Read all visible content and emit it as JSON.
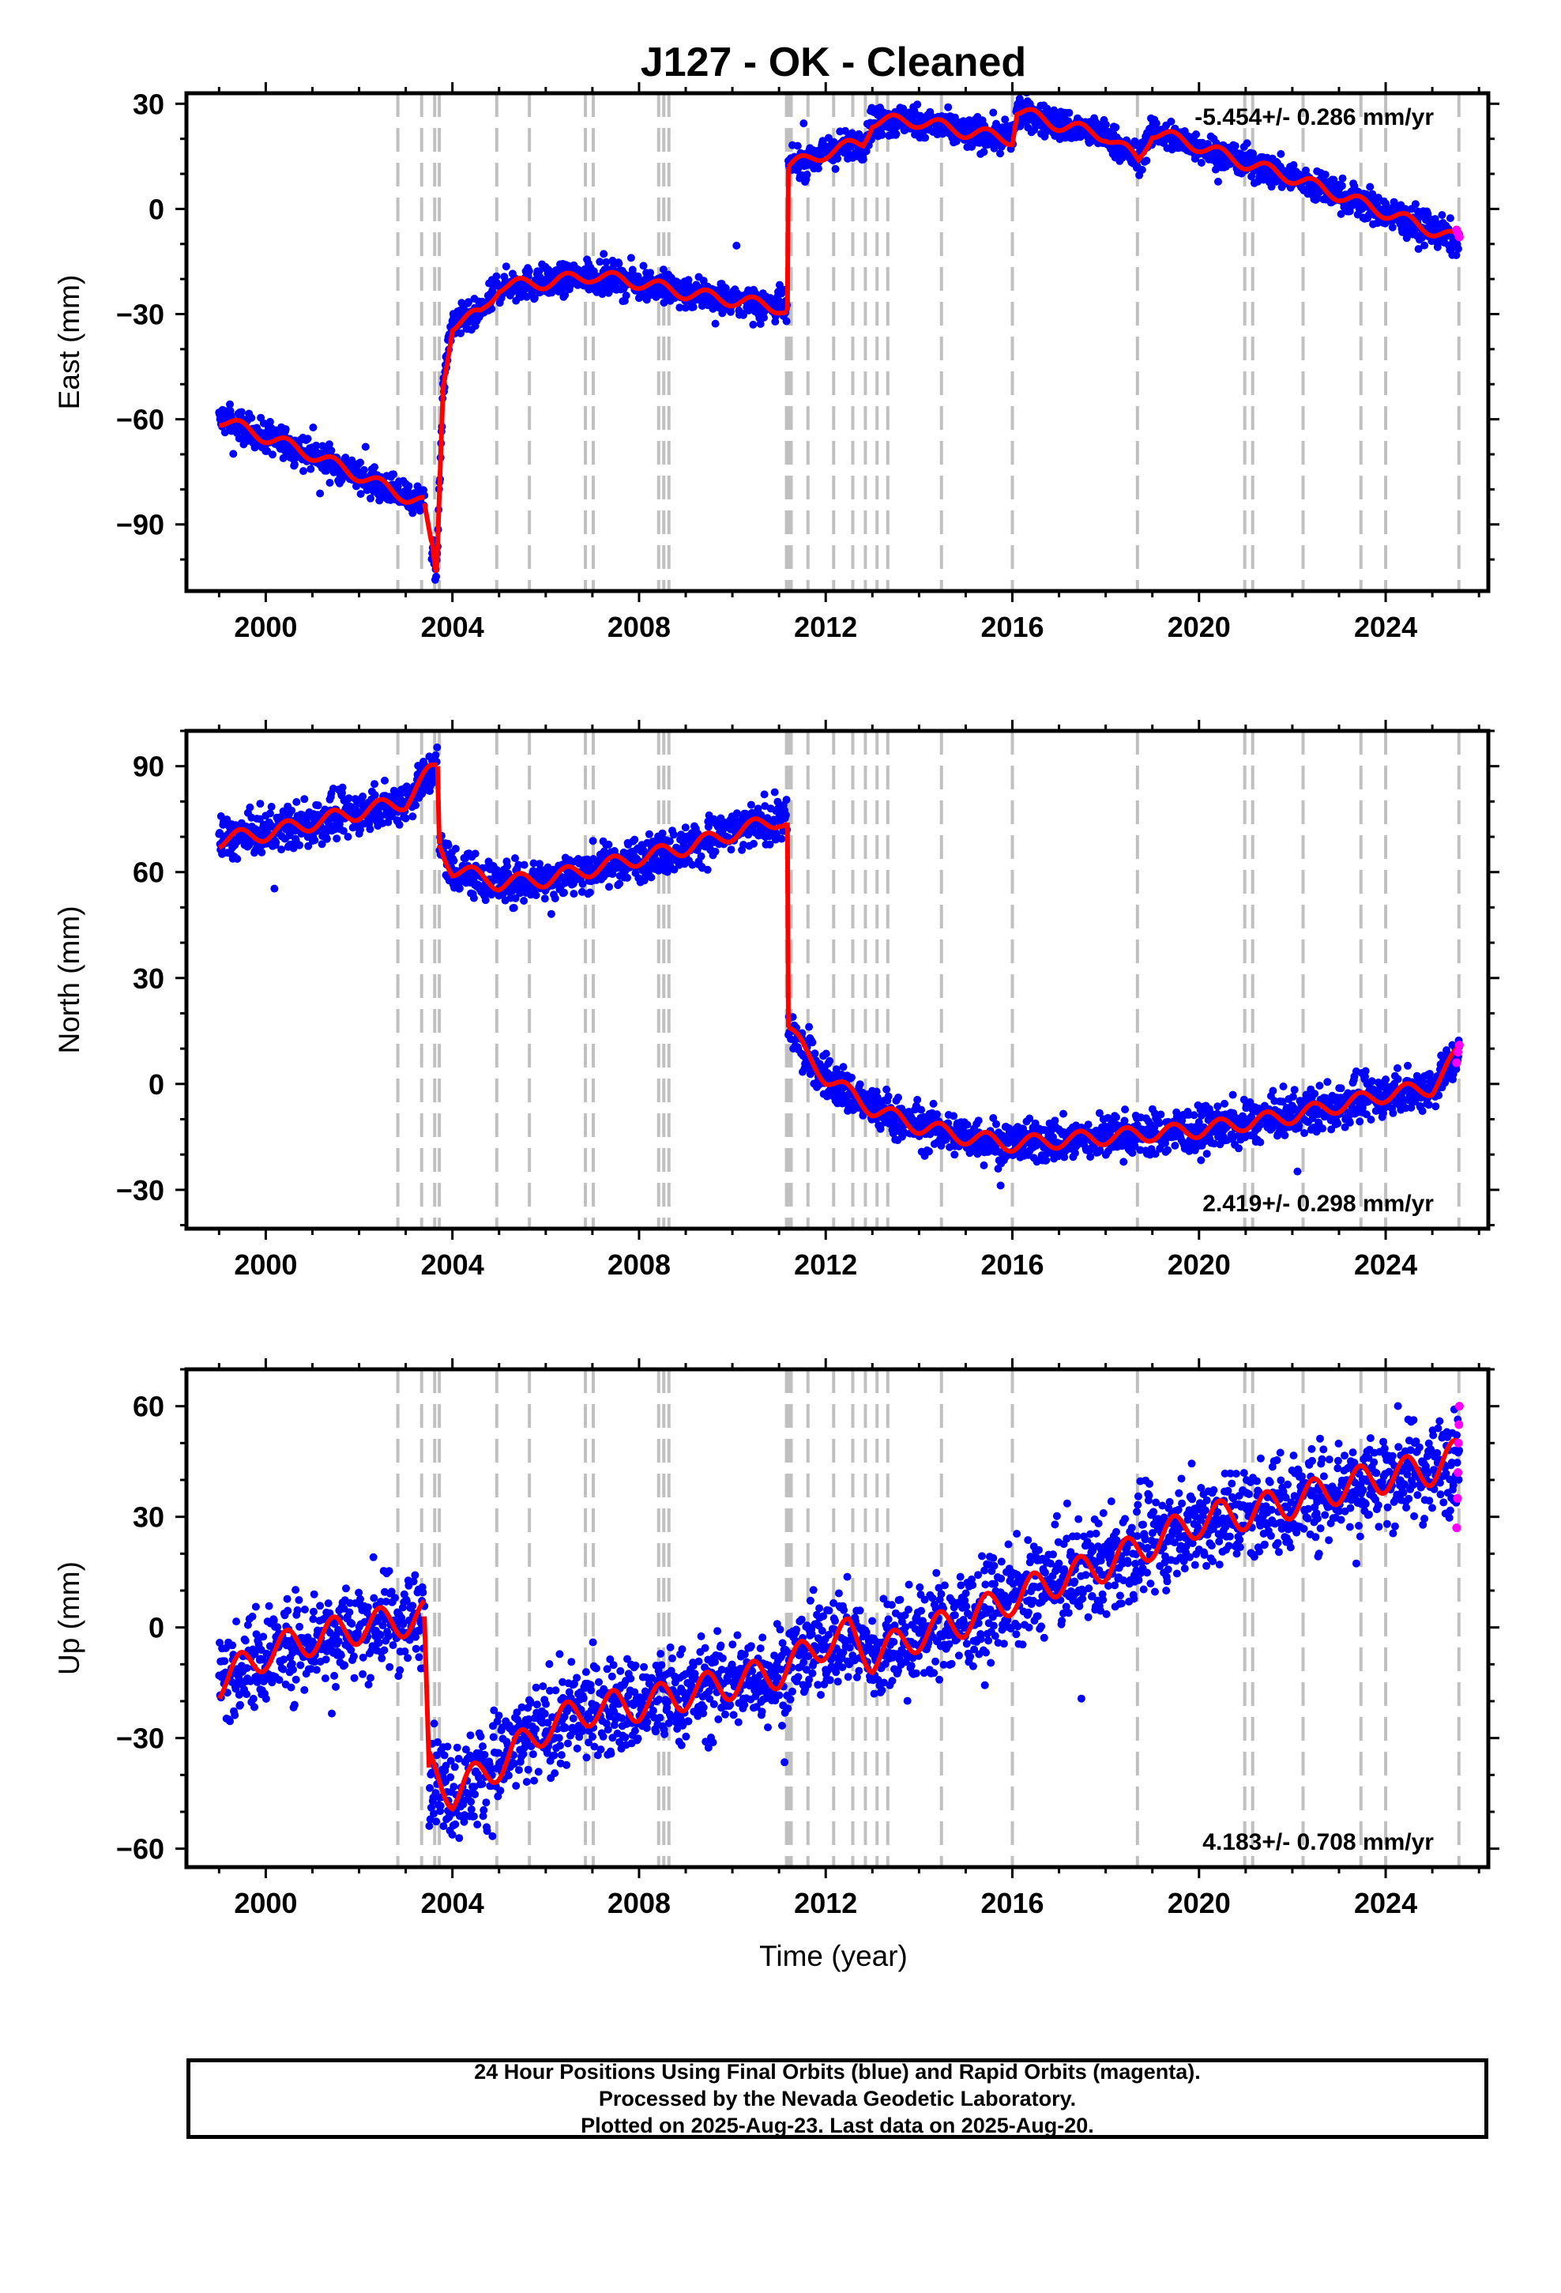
{
  "title": "J127  - OK - Cleaned",
  "xlabel": "Time (year)",
  "colors": {
    "final": "#0000ff",
    "rapid": "#ff00ff",
    "model": "#ff0000",
    "event": "#c0c0c0"
  },
  "chart_data": [
    {
      "type": "scatter",
      "panel": "East",
      "ylabel": "East (mm)",
      "rate_label": "-5.454+/- 0.286 mm/yr",
      "rate_position": "top-right",
      "xlim": [
        1998.3,
        2026.2
      ],
      "ylim": [
        -109,
        33
      ],
      "xticks": [
        2000,
        2004,
        2008,
        2012,
        2016,
        2020,
        2024
      ],
      "yticks": [
        30,
        0,
        -30,
        -60,
        -90
      ],
      "ytick_labels": [
        "30",
        "0",
        "−30",
        "−60",
        "−90"
      ],
      "breaks": [
        2003.45,
        2011.19
      ],
      "model": [
        [
          [
            1999.0,
            -60
          ],
          [
            2000.0,
            -65
          ],
          [
            2001.0,
            -70
          ],
          [
            2002.0,
            -76
          ],
          [
            2003.0,
            -82
          ],
          [
            2003.4,
            -84
          ]
        ],
        [
          [
            2003.55,
            -95
          ],
          [
            2003.62,
            -102
          ],
          [
            2003.66,
            -105
          ],
          [
            2003.8,
            -50
          ],
          [
            2004.0,
            -33
          ],
          [
            2004.6,
            -30
          ],
          [
            2005.0,
            -22
          ],
          [
            2006.0,
            -21
          ],
          [
            2007.0,
            -19
          ],
          [
            2008.0,
            -21
          ],
          [
            2009.0,
            -24
          ],
          [
            2010.0,
            -26
          ],
          [
            2011.0,
            -28
          ],
          [
            2011.18,
            -29
          ]
        ],
        [
          [
            2011.2,
            12
          ],
          [
            2012.0,
            16
          ],
          [
            2012.8,
            19
          ],
          [
            2013.0,
            25
          ],
          [
            2014.0,
            25
          ],
          [
            2015.0,
            22
          ],
          [
            2016.0,
            20
          ],
          [
            2016.1,
            28
          ],
          [
            2017.0,
            24
          ],
          [
            2018.0,
            21
          ],
          [
            2018.7,
            14
          ],
          [
            2019.0,
            22
          ],
          [
            2020.0,
            18
          ],
          [
            2021.0,
            13
          ],
          [
            2022.0,
            9
          ],
          [
            2023.0,
            4
          ],
          [
            2024.0,
            -1
          ],
          [
            2025.0,
            -6
          ],
          [
            2025.58,
            -9
          ]
        ]
      ],
      "rapid": [
        [
          2025.52,
          -6
        ],
        [
          2025.55,
          -7
        ],
        [
          2025.58,
          -8
        ]
      ]
    },
    {
      "type": "scatter",
      "panel": "North",
      "ylabel": "North (mm)",
      "rate_label": "2.419+/- 0.298 mm/yr",
      "rate_position": "bottom-right",
      "xlim": [
        1998.3,
        2026.2
      ],
      "ylim": [
        -41,
        100
      ],
      "xticks": [
        2000,
        2004,
        2008,
        2012,
        2016,
        2020,
        2024
      ],
      "yticks": [
        90,
        60,
        30,
        0,
        -30
      ],
      "ytick_labels": [
        "90",
        "60",
        "30",
        "0",
        "−30"
      ],
      "breaks": [
        2003.7,
        2011.19
      ],
      "model": [
        [
          [
            1999.0,
            69
          ],
          [
            2000.0,
            71
          ],
          [
            2001.0,
            74
          ],
          [
            2002.0,
            77
          ],
          [
            2003.0,
            80
          ],
          [
            2003.5,
            88
          ],
          [
            2003.68,
            90
          ]
        ],
        [
          [
            2003.72,
            68
          ],
          [
            2004.0,
            61
          ],
          [
            2005.0,
            57
          ],
          [
            2006.0,
            58
          ],
          [
            2007.0,
            61
          ],
          [
            2008.0,
            64
          ],
          [
            2009.0,
            67
          ],
          [
            2010.0,
            71
          ],
          [
            2011.0,
            75
          ],
          [
            2011.18,
            74
          ]
        ],
        [
          [
            2011.2,
            16
          ],
          [
            2011.6,
            8
          ],
          [
            2012.0,
            2
          ],
          [
            2013.0,
            -7
          ],
          [
            2014.0,
            -12
          ],
          [
            2015.0,
            -15
          ],
          [
            2016.0,
            -17
          ],
          [
            2017.0,
            -16
          ],
          [
            2018.0,
            -15
          ],
          [
            2019.0,
            -14
          ],
          [
            2020.0,
            -13
          ],
          [
            2021.0,
            -11
          ],
          [
            2022.0,
            -9
          ],
          [
            2023.0,
            -6
          ],
          [
            2024.0,
            -3
          ],
          [
            2025.0,
            -1
          ],
          [
            2025.58,
            9
          ]
        ]
      ],
      "rapid": [
        [
          2025.52,
          6
        ],
        [
          2025.55,
          9
        ],
        [
          2025.58,
          11
        ]
      ]
    },
    {
      "type": "scatter",
      "panel": "Up",
      "ylabel": "Up (mm)",
      "rate_label": "4.183+/- 0.708 mm/yr",
      "rate_position": "bottom-right",
      "xlim": [
        1998.3,
        2026.2
      ],
      "ylim": [
        -65,
        70
      ],
      "xticks": [
        2000,
        2004,
        2008,
        2012,
        2016,
        2020,
        2024
      ],
      "yticks": [
        60,
        30,
        0,
        -30,
        -60
      ],
      "ytick_labels": [
        "60",
        "30",
        "0",
        "−30",
        "−60"
      ],
      "breaks": [
        2003.45
      ],
      "model": [
        [
          [
            1999.0,
            -15
          ],
          [
            2000.0,
            -7
          ],
          [
            2001.0,
            -3
          ],
          [
            2002.0,
            0
          ],
          [
            2003.0,
            2
          ],
          [
            2003.4,
            3
          ]
        ],
        [
          [
            2003.5,
            -38
          ],
          [
            2004.0,
            -45
          ],
          [
            2005.0,
            -37
          ],
          [
            2006.0,
            -27
          ],
          [
            2007.0,
            -22
          ],
          [
            2008.0,
            -21
          ],
          [
            2009.0,
            -18
          ],
          [
            2010.0,
            -15
          ],
          [
            2011.0,
            -12
          ],
          [
            2012.0,
            -4
          ],
          [
            2012.5,
            -2
          ],
          [
            2013.0,
            -8
          ],
          [
            2014.0,
            -2
          ],
          [
            2015.0,
            2
          ],
          [
            2016.0,
            8
          ],
          [
            2017.0,
            13
          ],
          [
            2018.0,
            17
          ],
          [
            2019.0,
            23
          ],
          [
            2020.0,
            29
          ],
          [
            2021.0,
            31
          ],
          [
            2022.0,
            34
          ],
          [
            2023.0,
            38
          ],
          [
            2024.0,
            41
          ],
          [
            2025.0,
            43
          ],
          [
            2025.58,
            47
          ]
        ]
      ],
      "rapid": [
        [
          2025.52,
          27
        ],
        [
          2025.54,
          35
        ],
        [
          2025.55,
          42
        ],
        [
          2025.56,
          50
        ],
        [
          2025.57,
          55
        ],
        [
          2025.58,
          60
        ]
      ]
    }
  ],
  "event_lines": [
    2002.83,
    2003.34,
    2003.62,
    2003.72,
    2004.95,
    2005.65,
    2006.85,
    2007.02,
    2008.42,
    2008.53,
    2008.64,
    2011.16,
    2011.21,
    2011.26,
    2011.62,
    2012.17,
    2012.58,
    2012.85,
    2013.1,
    2013.33,
    2014.48,
    2016.0,
    2018.68,
    2020.98,
    2021.15,
    2022.23,
    2023.47,
    2024.0,
    2025.57
  ],
  "caption": {
    "line1": "24 Hour Positions Using Final Orbits (blue) and Rapid Orbits (magenta).",
    "line2": "Processed by the Nevada Geodetic Laboratory.",
    "line3": "Plotted on 2025-Aug-23. Last data on 2025-Aug-20."
  }
}
